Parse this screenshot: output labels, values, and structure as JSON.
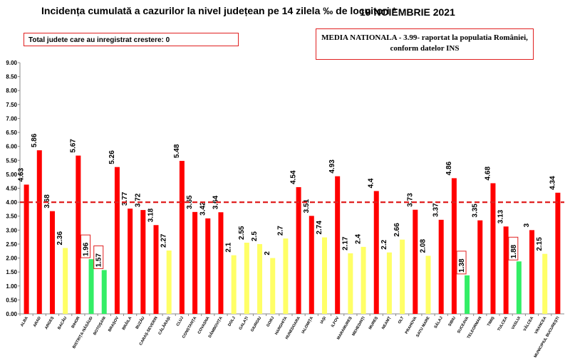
{
  "header": {
    "title": "Incidența cumulată a cazurilor la nivel județean pe 14 zilela ‰ de locuitori *",
    "date": "19 NOIEMBRIE 2021"
  },
  "info_box": {
    "text": "Total judete care au inregistrat crestere: 0"
  },
  "national_box": {
    "line1": "MEDIA NATIONALA - 3.99- raportat la populatia României,",
    "line2": "conform datelor INS"
  },
  "colors": {
    "red": "#ff0000",
    "yellow": "#ffff66",
    "green": "#33ee66",
    "threshold": "#e02020"
  },
  "chart_data": {
    "type": "bar",
    "title": "Incidența cumulată a cazurilor la nivel județean pe 14 zilela ‰ de locuitori *",
    "ylim": [
      0,
      9
    ],
    "yticks": [
      "0.00",
      "0.50",
      "1.00",
      "1.50",
      "2.00",
      "2.50",
      "3.00",
      "3.50",
      "4.00",
      "4.50",
      "5.00",
      "5.50",
      "6.00",
      "6.50",
      "7.00",
      "7.50",
      "8.00",
      "8.50",
      "9.00"
    ],
    "threshold": 4.0,
    "grid": false,
    "categories": [
      "ALBA",
      "ARAD",
      "ARGEȘ",
      "BACĂU",
      "BIHOR",
      "BISTRIȚA-NĂSĂUD",
      "BOTOȘANI",
      "BRAȘOV",
      "BRĂILA",
      "BUZĂU",
      "CARAȘ-SEVERIN",
      "CĂLĂRAȘI",
      "CLUJ",
      "CONSTANȚA",
      "COVASNA",
      "DÂMBOVIȚA",
      "DOLJ",
      "GALAȚI",
      "GIURGIU",
      "GORJ",
      "HARGHITA",
      "HUNEDOARA",
      "IALOMIȚA",
      "IAȘI",
      "ILFOV",
      "MARAMUREȘ",
      "MEHEDINȚI",
      "MUREȘ",
      "NEAMȚ",
      "OLT",
      "PRAHOVA",
      "SATU MARE",
      "SĂLAJ",
      "SIBIU",
      "SUCEAVA",
      "TELEORMAN",
      "TIMIȘ",
      "TULCEA",
      "VASLUI",
      "VÂLCEA",
      "VRANCEA",
      "MUNICIPIUL BUCUREȘTI"
    ],
    "value_labels": [
      "4.63",
      "5.86",
      "3.68",
      "2.36",
      "5.67",
      "1.96",
      "1.57",
      "5.26",
      "3.77",
      "3.72",
      "3.18",
      "2.27",
      "5.48",
      "3.65",
      "3.42",
      "3.64",
      "2.1",
      "2.55",
      "2.5",
      "2",
      "2.7",
      "4.54",
      "3.51",
      "2.74",
      "4.93",
      "2.17",
      "2.4",
      "4.4",
      "2.2",
      "2.66",
      "3.73",
      "2.08",
      "3.37",
      "4.86",
      "1.38",
      "3.35",
      "4.68",
      "3.13",
      "1.88",
      "3",
      "2.15",
      "4.34"
    ],
    "values": [
      4.63,
      5.86,
      3.68,
      2.36,
      5.67,
      1.96,
      1.57,
      5.26,
      3.77,
      3.72,
      3.18,
      2.27,
      5.48,
      3.65,
      3.42,
      3.64,
      2.1,
      2.55,
      2.5,
      2.0,
      2.7,
      4.54,
      3.51,
      2.74,
      4.93,
      2.17,
      2.4,
      4.4,
      2.2,
      2.66,
      3.73,
      2.08,
      3.37,
      4.86,
      1.38,
      3.35,
      4.68,
      3.13,
      1.88,
      3.0,
      2.15,
      4.34
    ],
    "bar_colors": [
      "red",
      "red",
      "red",
      "yellow",
      "red",
      "green",
      "green",
      "red",
      "red",
      "red",
      "red",
      "yellow",
      "red",
      "red",
      "red",
      "red",
      "yellow",
      "yellow",
      "yellow",
      "yellow",
      "yellow",
      "red",
      "red",
      "yellow",
      "red",
      "yellow",
      "yellow",
      "red",
      "yellow",
      "yellow",
      "red",
      "yellow",
      "red",
      "red",
      "green",
      "red",
      "red",
      "red",
      "green",
      "red",
      "yellow",
      "red"
    ],
    "boxed_labels": [
      5,
      6,
      34,
      38
    ]
  }
}
